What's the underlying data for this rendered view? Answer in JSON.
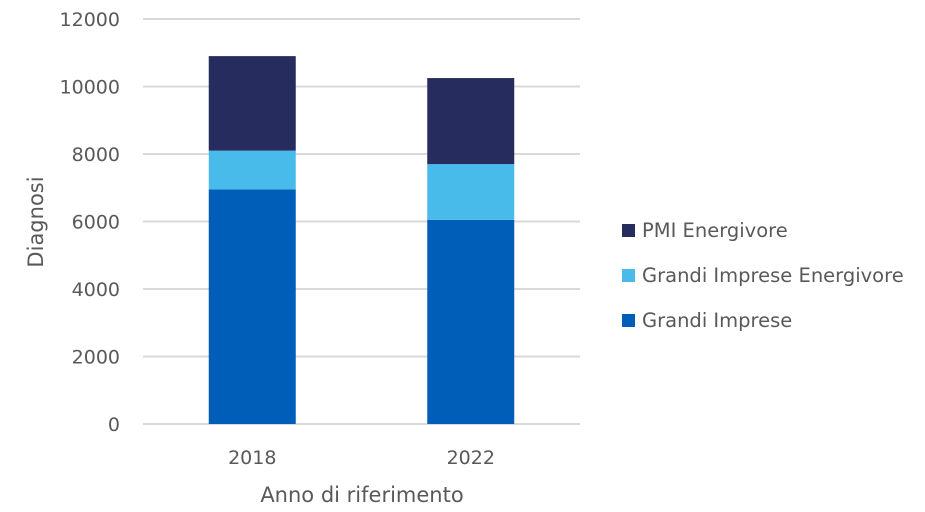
{
  "chart_data": {
    "type": "bar",
    "stacked": true,
    "categories": [
      "2018",
      "2022"
    ],
    "series": [
      {
        "name": "Grandi Imprese",
        "values": [
          6950,
          6050
        ],
        "color": "#005EB8"
      },
      {
        "name": "Grandi Imprese Energivore",
        "values": [
          1150,
          1650
        ],
        "color": "#48BBEB"
      },
      {
        "name": "PMI Energivore",
        "values": [
          2800,
          2550
        ],
        "color": "#262C5E"
      }
    ],
    "title": "",
    "xlabel": "Anno di riferimento",
    "ylabel": "Diagnosi",
    "ylim": [
      0,
      12000
    ],
    "yticks": [
      "0",
      "2000",
      "4000",
      "6000",
      "8000",
      "10000",
      "12000"
    ],
    "grid": true,
    "gridColor": "#D9D9D9",
    "legend_position": "right",
    "legend_order": [
      2,
      1,
      0
    ]
  }
}
